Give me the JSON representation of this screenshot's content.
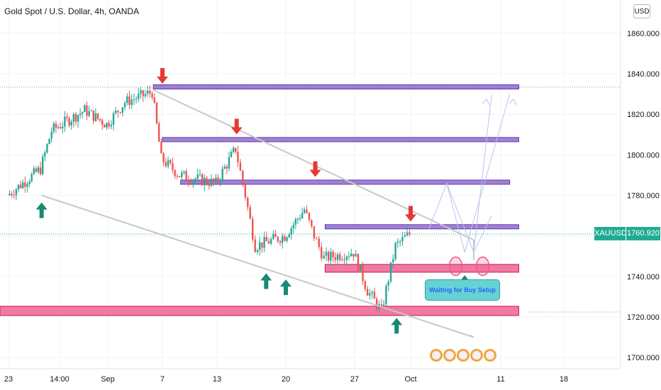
{
  "header": {
    "title": "Gold Spot / U.S. Dollar, 4h, OANDA",
    "currency_button": "USD"
  },
  "price_label": {
    "symbol": "XAUUSD",
    "value": "1760.920"
  },
  "annotation": {
    "text": "Waiting for Buy Setup"
  },
  "colors": {
    "up": "#26a69a",
    "down": "#ef5350",
    "purple_zone": "#9575cd",
    "pink_zone": "#f06292",
    "arrow_down": "#e53935",
    "arrow_up": "#168a73",
    "trendline": "#c8c8c8",
    "projection": "#b9c3f0"
  },
  "icons": [
    "coin-icon",
    "coin-icon",
    "coin-icon",
    "coin-icon",
    "coin-icon"
  ],
  "chart_data": {
    "type": "candlestick",
    "title": "Gold Spot / U.S. Dollar, 4h, OANDA",
    "y_axis": {
      "ticks": [
        "1860.000",
        "1840.000",
        "1820.000",
        "1800.000",
        "1780.000",
        "1760.000",
        "1740.000",
        "1720.000",
        "1700.000"
      ],
      "range": [
        1693,
        1881
      ]
    },
    "x_axis": {
      "ticks": [
        "23",
        "14:00",
        "Sep",
        "7",
        "13",
        "20",
        "27",
        "Oct",
        "11",
        "18"
      ]
    },
    "last_price": 1760.92,
    "price_path": [
      {
        "x": "Aug 23",
        "price": 1780
      },
      {
        "x": "Aug 26",
        "price": 1793
      },
      {
        "x": "Aug 27",
        "price": 1812
      },
      {
        "x": "Aug 30",
        "price": 1822
      },
      {
        "x": "Sep 1",
        "price": 1815
      },
      {
        "x": "Sep 3",
        "price": 1826
      },
      {
        "x": "Sep 6",
        "price": 1831
      },
      {
        "x": "Sep 7",
        "price": 1798
      },
      {
        "x": "Sep 9",
        "price": 1790
      },
      {
        "x": "Sep 13",
        "price": 1786
      },
      {
        "x": "Sep 15",
        "price": 1803
      },
      {
        "x": "Sep 16",
        "price": 1780
      },
      {
        "x": "Sep 17",
        "price": 1755
      },
      {
        "x": "Sep 20",
        "price": 1760
      },
      {
        "x": "Sep 22",
        "price": 1773
      },
      {
        "x": "Sep 23",
        "price": 1760
      },
      {
        "x": "Sep 24",
        "price": 1749
      },
      {
        "x": "Sep 27",
        "price": 1752
      },
      {
        "x": "Sep 28",
        "price": 1733
      },
      {
        "x": "Sep 29",
        "price": 1723
      },
      {
        "x": "Sep 30",
        "price": 1755
      },
      {
        "x": "Oct 1",
        "price": 1761
      }
    ],
    "zones": [
      {
        "color": "purple",
        "price": 1833.5,
        "x_start": "Sep 6",
        "x_end": "Oct 13"
      },
      {
        "color": "purple",
        "price": 1807.5,
        "x_start": "Sep 7",
        "x_end": "Oct 13"
      },
      {
        "color": "purple",
        "price": 1786.5,
        "x_start": "Sep 9",
        "x_end": "Oct 12"
      },
      {
        "color": "purple",
        "price": 1764.5,
        "x_start": "Sep 24",
        "x_end": "Oct 13"
      },
      {
        "color": "pink",
        "price": 1744,
        "x_start": "Sep 24",
        "x_end": "Oct 13"
      },
      {
        "color": "pink",
        "price": 1723,
        "x_start": "Aug 22",
        "x_end": "Oct 13"
      }
    ],
    "trendlines": [
      {
        "from": [
          "Sep 6",
          1832
        ],
        "to": [
          "Oct 8",
          1758
        ]
      },
      {
        "from": [
          "Aug 26",
          1780
        ],
        "to": [
          "Oct 8",
          1710
        ]
      }
    ],
    "signals": [
      {
        "type": "sell",
        "x": "Sep 7",
        "price": 1833
      },
      {
        "type": "sell",
        "x": "Sep 15",
        "price": 1808
      },
      {
        "type": "sell",
        "x": "Sep 23",
        "price": 1787
      },
      {
        "type": "sell",
        "x": "Oct 1",
        "price": 1765
      },
      {
        "type": "buy",
        "x": "Aug 26",
        "price": 1780
      },
      {
        "type": "buy",
        "x": "Sep 18",
        "price": 1745
      },
      {
        "type": "buy",
        "x": "Sep 20",
        "price": 1742
      },
      {
        "type": "buy",
        "x": "Sep 30",
        "price": 1723
      }
    ],
    "markers": [
      {
        "type": "circle",
        "x": "Oct 6",
        "price": 1745
      },
      {
        "type": "circle",
        "x": "Oct 9",
        "price": 1745
      },
      {
        "type": "up-arrow",
        "x": "Oct 7",
        "price": 1742
      }
    ],
    "projection_paths": [
      [
        [
          "Oct 3",
          1763
        ],
        [
          "Oct 5",
          1786
        ],
        [
          "Oct 8",
          1752
        ],
        [
          "Oct 10",
          1830
        ]
      ],
      [
        [
          "Oct 5",
          1786
        ],
        [
          "Oct 7",
          1752
        ],
        [
          "Oct 12",
          1830
        ]
      ],
      [
        [
          "Oct 8",
          1752
        ],
        [
          "Oct 10",
          1770
        ]
      ]
    ],
    "grid": true
  }
}
